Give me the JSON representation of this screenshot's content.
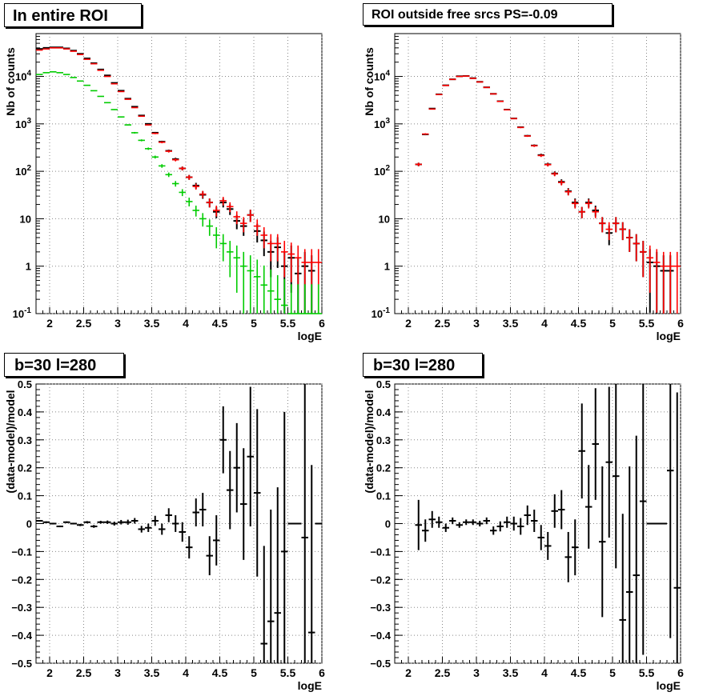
{
  "titles": {
    "p1": "In entire ROI",
    "p2": "ROI outside free srcs PS=-0.09",
    "p3": "b=30 l=280",
    "p4": "b=30 l=280"
  },
  "colors": {
    "data": "#000000",
    "model": "#ff0000",
    "blue": "#0000ff",
    "green": "#00cc00",
    "grid": "#888888"
  },
  "chart_data": [
    {
      "type": "scatter",
      "title": "In entire ROI",
      "xlabel": "logE",
      "ylabel": "Nb of counts",
      "xlim": [
        1.8,
        6.0
      ],
      "ylim": [
        0.1,
        80000
      ],
      "yscale": "log",
      "grid": true,
      "xticks": [
        "2",
        "2.5",
        "3",
        "3.5",
        "4",
        "4.5",
        "5",
        "5.5",
        "6"
      ],
      "yticks": [
        "10^-1",
        "1",
        "10",
        "10^2",
        "10^3",
        "10^4"
      ],
      "x": [
        1.85,
        1.95,
        2.05,
        2.15,
        2.25,
        2.35,
        2.45,
        2.55,
        2.65,
        2.75,
        2.85,
        2.95,
        3.05,
        3.15,
        3.25,
        3.35,
        3.45,
        3.55,
        3.65,
        3.75,
        3.85,
        3.95,
        4.05,
        4.15,
        4.25,
        4.35,
        4.45,
        4.55,
        4.65,
        4.75,
        4.85,
        4.95,
        5.05,
        5.15,
        5.25,
        5.35,
        5.45,
        5.55,
        5.65,
        5.75,
        5.85,
        5.95
      ],
      "series": [
        {
          "name": "",
          "color": "black",
          "values": [
            38000,
            40000,
            41000,
            41000,
            39000,
            35000,
            30000,
            24000,
            19000,
            14000,
            10500,
            7300,
            5000,
            3400,
            2300,
            1500,
            1000,
            650,
            420,
            270,
            180,
            115,
            75,
            50,
            32,
            22,
            14,
            22,
            16,
            9,
            7,
            12,
            5.5,
            3.5,
            2,
            2.5,
            1,
            1.5,
            0.7,
            1,
            0.8,
            0
          ]
        },
        {
          "name": "",
          "color": "red",
          "values": [
            36000,
            38000,
            40000,
            40000,
            38000,
            34000,
            29000,
            23000,
            18500,
            13500,
            10000,
            7000,
            4800,
            3300,
            2200,
            1450,
            950,
            630,
            410,
            265,
            175,
            115,
            75,
            48,
            33,
            22,
            15,
            24,
            18,
            11,
            8,
            12,
            7,
            4.5,
            3,
            3,
            2,
            1.8,
            1.5,
            1.2,
            1.2,
            1.2
          ]
        },
        {
          "name": "",
          "color": "green",
          "values": [
            11000,
            12000,
            12500,
            12000,
            11000,
            9500,
            8000,
            6500,
            5000,
            3800,
            2800,
            2000,
            1400,
            950,
            650,
            450,
            300,
            200,
            130,
            85,
            55,
            36,
            23,
            15,
            10,
            7,
            4.5,
            3,
            2,
            1.5,
            1,
            0.8,
            0.6,
            0.4,
            0.3,
            0.2,
            0.15,
            0.1,
            0.1,
            0.1,
            0.1,
            0.1
          ]
        }
      ]
    },
    {
      "type": "scatter",
      "title": "ROI outside free srcs PS=-0.09",
      "xlabel": "logE",
      "ylabel": "Nb of counts",
      "xlim": [
        1.8,
        6.0
      ],
      "ylim": [
        0.1,
        80000
      ],
      "yscale": "log",
      "grid": true,
      "xticks": [
        "2",
        "2.5",
        "3",
        "3.5",
        "4",
        "4.5",
        "5",
        "5.5",
        "6"
      ],
      "yticks": [
        "10^-1",
        "1",
        "10",
        "10^2",
        "10^3",
        "10^4"
      ],
      "x": [
        2.15,
        2.25,
        2.35,
        2.45,
        2.55,
        2.65,
        2.75,
        2.85,
        2.95,
        3.05,
        3.15,
        3.25,
        3.35,
        3.45,
        3.55,
        3.65,
        3.75,
        3.85,
        3.95,
        4.05,
        4.15,
        4.25,
        4.35,
        4.45,
        4.55,
        4.65,
        4.75,
        4.85,
        4.95,
        5.05,
        5.15,
        5.25,
        5.35,
        5.45,
        5.55,
        5.65,
        5.75,
        5.85,
        5.95
      ],
      "series": [
        {
          "name": "",
          "color": "black",
          "values": [
            140,
            600,
            2100,
            4200,
            6500,
            8700,
            10100,
            10200,
            9200,
            7700,
            5900,
            4300,
            3000,
            2000,
            1300,
            850,
            560,
            350,
            220,
            140,
            90,
            60,
            38,
            22,
            14,
            22,
            15,
            8,
            5,
            8,
            6,
            4,
            3,
            2,
            1.2,
            1,
            0.8,
            0.8,
            0
          ]
        },
        {
          "name": "",
          "color": "red",
          "values": [
            140,
            610,
            2050,
            4150,
            6450,
            8650,
            10000,
            10150,
            9100,
            7650,
            5850,
            4280,
            2980,
            1980,
            1290,
            840,
            555,
            345,
            215,
            138,
            88,
            58,
            37,
            21,
            14,
            21,
            14,
            8,
            6,
            8,
            6,
            4,
            3,
            2,
            1.5,
            1.2,
            1,
            1,
            1
          ]
        }
      ]
    },
    {
      "type": "scatter",
      "title": "b=30 l=280",
      "xlabel": "logE",
      "ylabel": "(data-model)/model",
      "xlim": [
        1.8,
        6.0
      ],
      "ylim": [
        -0.5,
        0.5
      ],
      "grid": true,
      "xticks": [
        "2",
        "2.5",
        "3",
        "3.5",
        "4",
        "4.5",
        "5",
        "5.5",
        "6"
      ],
      "yticks": [
        "−0.5",
        "−0.4",
        "−0.3",
        "−0.2",
        "−0.1",
        "0",
        "0.1",
        "0.2",
        "0.3",
        "0.4",
        "0.5"
      ],
      "x": [
        1.85,
        1.95,
        2.05,
        2.15,
        2.25,
        2.35,
        2.45,
        2.55,
        2.65,
        2.75,
        2.85,
        2.95,
        3.05,
        3.15,
        3.25,
        3.35,
        3.45,
        3.55,
        3.65,
        3.75,
        3.85,
        3.95,
        4.05,
        4.15,
        4.25,
        4.35,
        4.45,
        4.55,
        4.65,
        4.75,
        4.85,
        4.95,
        5.05,
        5.15,
        5.25,
        5.35,
        5.45,
        5.55,
        5.65,
        5.75,
        5.85,
        5.95
      ],
      "series": [
        {
          "name": "",
          "color": "black",
          "values": [
            0.01,
            0.005,
            0.0,
            -0.01,
            0.005,
            0.0,
            -0.005,
            0.005,
            -0.01,
            0.005,
            0.005,
            0.0,
            0.005,
            0.005,
            0.01,
            -0.02,
            -0.015,
            0.01,
            -0.02,
            0.03,
            0.0,
            -0.03,
            -0.085,
            0.04,
            0.05,
            -0.115,
            -0.06,
            0.3,
            0.12,
            0.2,
            0.07,
            0.24,
            0.11,
            -0.43,
            -0.35,
            -0.32,
            -0.1,
            0.0,
            0.0,
            -0.05,
            -0.39,
            0.0
          ],
          "errors": [
            0.003,
            0.003,
            0.003,
            0.003,
            0.003,
            0.003,
            0.004,
            0.004,
            0.005,
            0.005,
            0.006,
            0.007,
            0.008,
            0.009,
            0.01,
            0.012,
            0.015,
            0.018,
            0.02,
            0.025,
            0.03,
            0.035,
            0.04,
            0.05,
            0.06,
            0.07,
            0.09,
            0.12,
            0.14,
            0.16,
            0.2,
            0.25,
            0.3,
            0.35,
            0.4,
            0.45,
            0.5,
            0.0,
            0.0,
            0.6,
            0.6,
            0.0
          ]
        }
      ]
    },
    {
      "type": "scatter",
      "title": "b=30 l=280",
      "xlabel": "logE",
      "ylabel": "(data-model)/model",
      "xlim": [
        1.8,
        6.0
      ],
      "ylim": [
        -0.5,
        0.5
      ],
      "grid": true,
      "xticks": [
        "2",
        "2.5",
        "3",
        "3.5",
        "4",
        "4.5",
        "5",
        "5.5",
        "6"
      ],
      "yticks": [
        "−0.5",
        "−0.4",
        "−0.3",
        "−0.2",
        "−0.1",
        "0",
        "0.1",
        "0.2",
        "0.3",
        "0.4",
        "0.5"
      ],
      "x": [
        2.15,
        2.25,
        2.35,
        2.45,
        2.55,
        2.65,
        2.75,
        2.85,
        2.95,
        3.05,
        3.15,
        3.25,
        3.35,
        3.45,
        3.55,
        3.65,
        3.75,
        3.85,
        3.95,
        4.05,
        4.15,
        4.25,
        4.35,
        4.45,
        4.55,
        4.65,
        4.75,
        4.85,
        4.95,
        5.05,
        5.15,
        5.25,
        5.35,
        5.45,
        5.55,
        5.65,
        5.75,
        5.85,
        5.95
      ],
      "series": [
        {
          "name": "",
          "color": "black",
          "values": [
            -0.005,
            -0.025,
            0.015,
            0.005,
            -0.015,
            0.01,
            -0.005,
            0.005,
            0.005,
            0.0,
            0.01,
            -0.025,
            -0.01,
            0.005,
            0.0,
            -0.01,
            0.03,
            0.01,
            -0.05,
            -0.08,
            0.045,
            0.05,
            -0.12,
            -0.085,
            0.26,
            0.06,
            0.285,
            -0.065,
            0.22,
            0.17,
            -0.345,
            -0.245,
            -0.185,
            0.08,
            0.0,
            0.0,
            0.0,
            0.19,
            -0.23
          ],
          "errors": [
            0.09,
            0.04,
            0.03,
            0.02,
            0.015,
            0.012,
            0.01,
            0.01,
            0.01,
            0.01,
            0.012,
            0.015,
            0.018,
            0.02,
            0.025,
            0.03,
            0.035,
            0.04,
            0.045,
            0.05,
            0.06,
            0.07,
            0.09,
            0.1,
            0.17,
            0.15,
            0.2,
            0.27,
            0.27,
            0.33,
            0.38,
            0.45,
            0.5,
            0.55,
            0.0,
            0.0,
            0.0,
            0.6,
            0.7
          ]
        }
      ]
    }
  ]
}
